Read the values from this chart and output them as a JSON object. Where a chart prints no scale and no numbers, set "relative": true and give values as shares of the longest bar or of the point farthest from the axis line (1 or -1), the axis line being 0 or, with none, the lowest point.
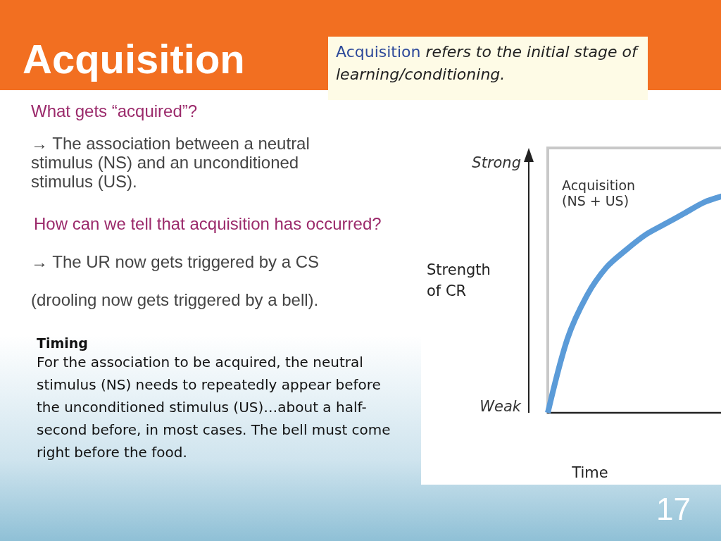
{
  "chart_data": {
    "type": "line",
    "title": "Acquisition",
    "xlabel": "Time",
    "ylabel": "Strength of CR",
    "annotations": [
      "Acquisition",
      "refers to the initial stage of learning/conditioning.",
      "What gets “acquired”?",
      "→ The association between a neutral stimulus (NS) and an unconditioned stimulus (US).",
      "How can we tell that acquisition has occurred?",
      "→ The UR now gets triggered by a CS",
      "(drooling now gets triggered by a bell).",
      "Timing",
      "For the association to be acquired, the neutral stimulus (NS) needs to repeatedly appear before the unconditioned stimulus (US)…about a half-second before, in most cases. The bell must come right before the food.",
      "17",
      "Strong",
      "Weak"
    ],
    "categories": [
      null,
      null,
      null,
      null,
      null,
      null,
      null,
      null,
      null,
      null
    ],
    "series": [
      {
        "name": "Acquisition (NS + US)",
        "color": "#5b9bd8",
        "values": [
          0,
          0.34,
          0.54,
          0.67,
          0.75,
          0.82,
          0.87,
          0.92,
          0.97,
          1
        ]
      }
    ],
    "relative": true,
    "grid": false,
    "legend": false,
    "marker": "none",
    "line_style": "solid"
  }
}
